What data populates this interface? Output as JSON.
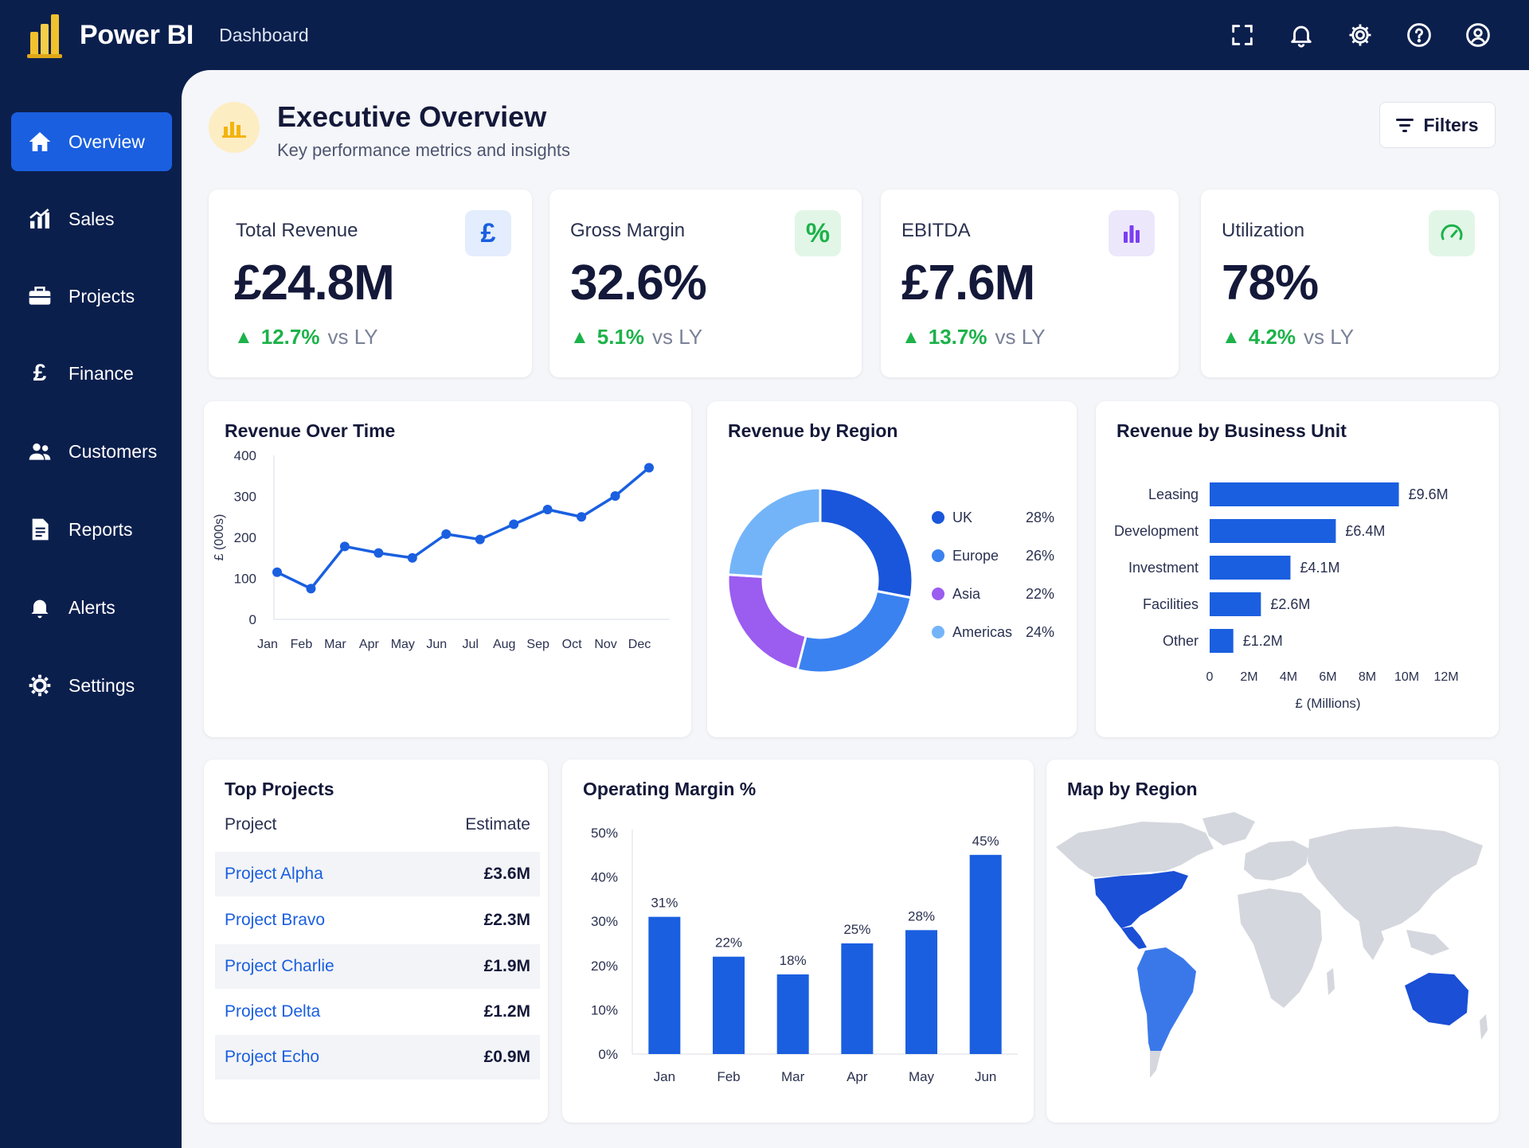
{
  "app": {
    "name": "Power BI",
    "breadcrumb": "Dashboard",
    "brand_color": "#f2c12e",
    "icons": [
      "fullscreen-icon",
      "bell-icon",
      "gear-icon",
      "help-icon",
      "user-icon"
    ]
  },
  "sidebar": {
    "accent": "#1a5fe0",
    "items": [
      {
        "label": "Overview",
        "icon": "home-icon",
        "active": true
      },
      {
        "label": "Sales",
        "icon": "sales-chart-icon"
      },
      {
        "label": "Projects",
        "icon": "briefcase-icon"
      },
      {
        "label": "Finance",
        "icon": "pound-icon"
      },
      {
        "label": "Customers",
        "icon": "users-icon"
      },
      {
        "label": "Reports",
        "icon": "document-icon"
      },
      {
        "label": "Alerts",
        "icon": "bell-icon"
      },
      {
        "label": "Settings",
        "icon": "gear-icon"
      }
    ]
  },
  "header": {
    "title": "Executive Overview",
    "subtitle": "Key performance metrics and insights",
    "filters_label": "Filters"
  },
  "kpis": [
    {
      "label": "Total Revenue",
      "value": "£24.8M",
      "delta": "12.7%",
      "comparison": "vs LY",
      "icon": "pound-icon",
      "icon_text": "£",
      "icon_bg": "#e3edfd",
      "icon_color": "#1a5fe0"
    },
    {
      "label": "Gross Margin",
      "value": "32.6%",
      "delta": "5.1%",
      "comparison": "vs LY",
      "icon": "percent-icon",
      "icon_text": "%",
      "icon_bg": "#e2f6e7",
      "icon_color": "#1cb24a"
    },
    {
      "label": "EBITDA",
      "value": "£7.6M",
      "delta": "13.7%",
      "comparison": "vs LY",
      "icon": "bar-chart-icon",
      "icon_text": "",
      "icon_bg": "#ede7fc",
      "icon_color": "#7b3ff0"
    },
    {
      "label": "Utilization",
      "value": "78%",
      "delta": "4.2%",
      "comparison": "vs LY",
      "icon": "gauge-icon",
      "icon_text": "",
      "icon_bg": "#e2f6e7",
      "icon_color": "#1cb24a"
    }
  ],
  "charts": {
    "revenue_over_time": {
      "title": "Revenue Over Time"
    },
    "revenue_by_region": {
      "title": "Revenue by Region"
    },
    "revenue_by_unit": {
      "title": "Revenue by Business Unit"
    },
    "operating_margin": {
      "title": "Operating Margin %"
    },
    "map": {
      "title": "Map by Region"
    }
  },
  "top_projects": {
    "title": "Top Projects",
    "columns": [
      "Project",
      "Estimate"
    ],
    "rows": [
      {
        "project": "Project Alpha",
        "estimate": "£3.6M"
      },
      {
        "project": "Project Bravo",
        "estimate": "£2.3M"
      },
      {
        "project": "Project Charlie",
        "estimate": "£1.9M"
      },
      {
        "project": "Project Delta",
        "estimate": "£1.2M"
      },
      {
        "project": "Project Echo",
        "estimate": "£0.9M"
      }
    ]
  },
  "chart_data": [
    {
      "type": "line",
      "title": "Revenue Over Time",
      "xlabel": "",
      "ylabel": "£ (000s)",
      "categories": [
        "Jan",
        "Feb",
        "Mar",
        "Apr",
        "May",
        "Jun",
        "Jul",
        "Aug",
        "Sep",
        "Oct",
        "Nov",
        "Dec"
      ],
      "values": [
        115,
        75,
        178,
        162,
        150,
        208,
        195,
        232,
        268,
        250,
        301,
        370
      ],
      "ylim": [
        0,
        400
      ],
      "yticks": [
        0,
        100,
        200,
        300,
        400
      ],
      "color": "#1a5fe0",
      "grid": false
    },
    {
      "type": "pie",
      "donut": true,
      "title": "Revenue by Region",
      "legend": "right",
      "series": [
        {
          "name": "UK",
          "label": "28%",
          "value": 28,
          "color": "#1a56db"
        },
        {
          "name": "Europe",
          "label": "26%",
          "value": 26,
          "color": "#3a82f0"
        },
        {
          "name": "Asia",
          "label": "22%",
          "value": 22,
          "color": "#9b5cf0"
        },
        {
          "name": "Americas",
          "label": "24%",
          "value": 24,
          "color": "#73b4f8"
        }
      ]
    },
    {
      "type": "bar",
      "orientation": "horizontal",
      "title": "Revenue by Business Unit",
      "categories": [
        "Leasing",
        "Development",
        "Investment",
        "Facilities",
        "Other"
      ],
      "values": [
        9.6,
        6.4,
        4.1,
        2.6,
        1.2
      ],
      "labels": [
        "£9.6M",
        "£6.4M",
        "£4.1M",
        "£2.6M",
        "£1.2M"
      ],
      "xlim": [
        0,
        12
      ],
      "xticks": [
        "0",
        "2M",
        "4M",
        "6M",
        "8M",
        "10M",
        "12M"
      ],
      "xlabel": "£ (Millions)",
      "color": "#1a5fe0"
    },
    {
      "type": "bar",
      "title": "Operating Margin %",
      "categories": [
        "Jan",
        "Feb",
        "Mar",
        "Apr",
        "May",
        "Jun"
      ],
      "values": [
        31,
        22,
        18,
        25,
        28,
        45
      ],
      "labels": [
        "31%",
        "22%",
        "18%",
        "25%",
        "28%",
        "45%"
      ],
      "ylim": [
        0,
        50
      ],
      "yticks": [
        "0%",
        "10%",
        "20%",
        "30%",
        "40%",
        "50%"
      ],
      "color": "#1a5fe0"
    }
  ]
}
